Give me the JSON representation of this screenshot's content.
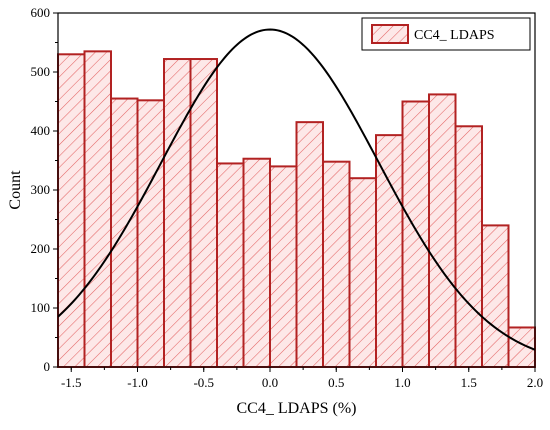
{
  "chart_data": {
    "type": "bar",
    "subtype": "histogram-with-normal-curve",
    "xlabel": "CC4_ LDAPS (%)",
    "ylabel": "Count",
    "xlim": [
      -1.6,
      2.0
    ],
    "ylim": [
      0,
      600
    ],
    "xticks": [
      -1.5,
      -1.0,
      -0.5,
      0.0,
      0.5,
      1.0,
      1.5,
      2.0
    ],
    "xtick_labels": [
      "-1.5",
      "-1.0",
      "-0.5",
      "0.0",
      "0.5",
      "1.0",
      "1.5",
      "2.0"
    ],
    "yticks": [
      0,
      100,
      200,
      300,
      400,
      500,
      600
    ],
    "ytick_labels": [
      "0",
      "100",
      "200",
      "300",
      "400",
      "500",
      "600"
    ],
    "legend": {
      "label": "CC4_ LDAPS",
      "placement": "top-right"
    },
    "bin_width": 0.2,
    "bin_starts": [
      -1.6,
      -1.4,
      -1.2,
      -1.0,
      -0.8,
      -0.6,
      -0.4,
      -0.2,
      0.0,
      0.2,
      0.4,
      0.6,
      0.8,
      1.0,
      1.2,
      1.4,
      1.6,
      1.8
    ],
    "values": [
      530,
      535,
      455,
      452,
      522,
      522,
      345,
      353,
      340,
      415,
      348,
      320,
      393,
      450,
      462,
      408,
      240,
      67
    ],
    "curve": {
      "type": "normal",
      "mean": 0.0,
      "peak": 572,
      "sigma": 0.82
    },
    "colors": {
      "bar_fill": "#fde8e8",
      "bar_edge": "#b22222",
      "hatch": "#e46464",
      "curve": "#000000"
    }
  }
}
